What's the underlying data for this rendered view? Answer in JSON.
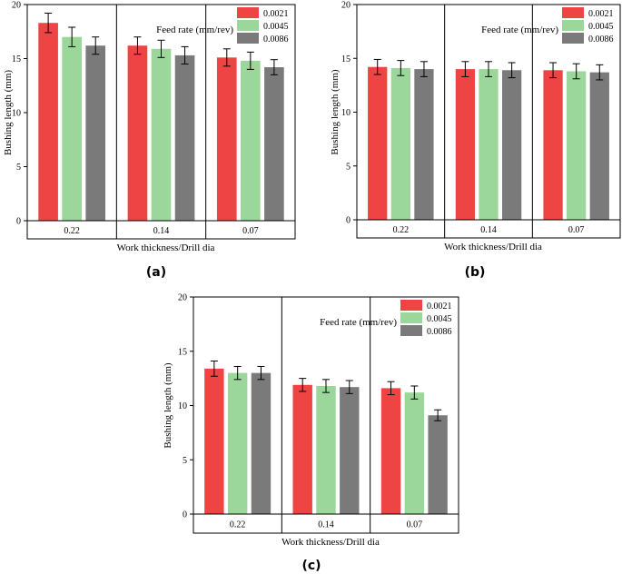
{
  "colors": {
    "c0021": "#ef4444",
    "c0045": "#9bd69b",
    "c0086": "#7a7a7a",
    "axis": "#000000"
  },
  "chart_data": [
    {
      "id": "a",
      "type": "bar",
      "panel_label": "(a)",
      "xlabel": "Work thickness/Drill dia",
      "ylabel": "Bushing length (mm)",
      "ylim": [
        0,
        20
      ],
      "yticks": [
        "0",
        "5",
        "10",
        "15",
        "20"
      ],
      "categories": [
        "0.22",
        "0.14",
        "0.07"
      ],
      "legend_title": "Feed rate (mm/rev)",
      "series": [
        {
          "name": "0.0021",
          "color": "#ef4444",
          "values": [
            18.3,
            16.2,
            15.1
          ],
          "errors": [
            0.9,
            0.8,
            0.8
          ]
        },
        {
          "name": "0.0045",
          "color": "#9bd69b",
          "values": [
            17.0,
            15.9,
            14.8
          ],
          "errors": [
            0.9,
            0.8,
            0.8
          ]
        },
        {
          "name": "0.0086",
          "color": "#7a7a7a",
          "values": [
            16.2,
            15.3,
            14.2
          ],
          "errors": [
            0.8,
            0.8,
            0.7
          ]
        }
      ]
    },
    {
      "id": "b",
      "type": "bar",
      "panel_label": "(b)",
      "xlabel": "Work thickness/Drill dia",
      "ylabel": "Bushing length (mm)",
      "ylim": [
        0,
        20
      ],
      "yticks": [
        "0",
        "5",
        "10",
        "15",
        "20"
      ],
      "categories": [
        "0.22",
        "0.14",
        "0.07"
      ],
      "legend_title": "Feed rate (mm/rev)",
      "series": [
        {
          "name": "0.0021",
          "color": "#ef4444",
          "values": [
            14.2,
            14.0,
            13.9
          ],
          "errors": [
            0.7,
            0.7,
            0.7
          ]
        },
        {
          "name": "0.0045",
          "color": "#9bd69b",
          "values": [
            14.1,
            14.0,
            13.8
          ],
          "errors": [
            0.7,
            0.7,
            0.7
          ]
        },
        {
          "name": "0.0086",
          "color": "#7a7a7a",
          "values": [
            14.0,
            13.9,
            13.7
          ],
          "errors": [
            0.7,
            0.7,
            0.7
          ]
        }
      ]
    },
    {
      "id": "c",
      "type": "bar",
      "panel_label": "(c)",
      "xlabel": "Work thickness/Drill dia",
      "ylabel": "Bushing length (mm)",
      "ylim": [
        0,
        20
      ],
      "yticks": [
        "0",
        "5",
        "10",
        "15",
        "20"
      ],
      "categories": [
        "0.22",
        "0.14",
        "0.07"
      ],
      "legend_title": "Feed rate (mm/rev)",
      "series": [
        {
          "name": "0.0021",
          "color": "#ef4444",
          "values": [
            13.4,
            11.9,
            11.6
          ],
          "errors": [
            0.7,
            0.6,
            0.6
          ]
        },
        {
          "name": "0.0045",
          "color": "#9bd69b",
          "values": [
            13.0,
            11.8,
            11.2
          ],
          "errors": [
            0.6,
            0.6,
            0.6
          ]
        },
        {
          "name": "0.0086",
          "color": "#7a7a7a",
          "values": [
            13.0,
            11.7,
            9.1
          ],
          "errors": [
            0.6,
            0.6,
            0.5
          ]
        }
      ]
    }
  ]
}
